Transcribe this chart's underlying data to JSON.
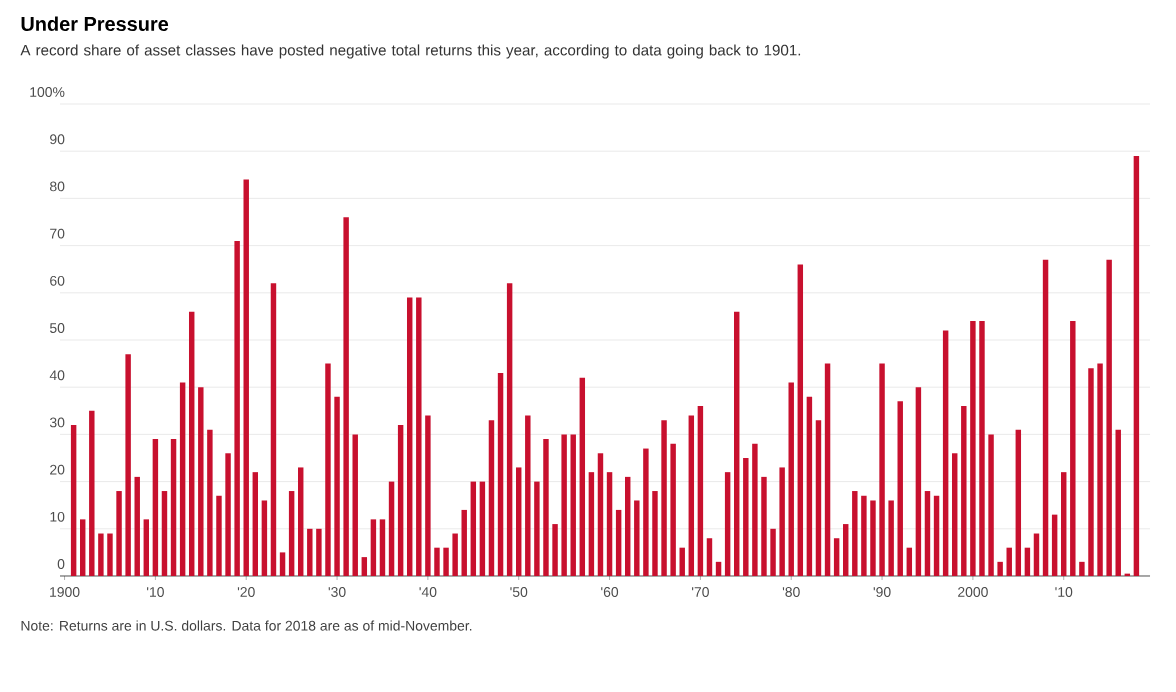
{
  "chart_data": {
    "type": "bar",
    "title": "Under Pressure",
    "subtitle": "A record share of asset classes have posted negative total returns this year, according to data going back to 1901.",
    "x": [
      1901,
      1902,
      1903,
      1904,
      1905,
      1906,
      1907,
      1908,
      1909,
      1910,
      1911,
      1912,
      1913,
      1914,
      1915,
      1916,
      1917,
      1918,
      1919,
      1920,
      1921,
      1922,
      1923,
      1924,
      1925,
      1926,
      1927,
      1928,
      1929,
      1930,
      1931,
      1932,
      1933,
      1934,
      1935,
      1936,
      1937,
      1938,
      1939,
      1940,
      1941,
      1942,
      1943,
      1944,
      1945,
      1946,
      1947,
      1948,
      1949,
      1950,
      1951,
      1952,
      1953,
      1954,
      1955,
      1956,
      1957,
      1958,
      1959,
      1960,
      1961,
      1962,
      1963,
      1964,
      1965,
      1966,
      1967,
      1968,
      1969,
      1970,
      1971,
      1972,
      1973,
      1974,
      1975,
      1976,
      1977,
      1978,
      1979,
      1980,
      1981,
      1982,
      1983,
      1984,
      1985,
      1986,
      1987,
      1988,
      1989,
      1990,
      1991,
      1992,
      1993,
      1994,
      1995,
      1996,
      1997,
      1998,
      1999,
      2000,
      2001,
      2002,
      2003,
      2004,
      2005,
      2006,
      2007,
      2008,
      2009,
      2010,
      2011,
      2012,
      2013,
      2014,
      2015,
      2016,
      2017,
      2018
    ],
    "values": [
      32,
      12,
      35,
      9,
      9,
      18,
      47,
      21,
      12,
      29,
      18,
      29,
      41,
      56,
      40,
      31,
      17,
      26,
      71,
      84,
      22,
      16,
      62,
      5,
      18,
      23,
      10,
      10,
      45,
      38,
      76,
      30,
      4,
      12,
      12,
      20,
      32,
      59,
      59,
      34,
      6,
      6,
      9,
      14,
      20,
      20,
      33,
      43,
      62,
      23,
      34,
      20,
      29,
      11,
      30,
      30,
      42,
      22,
      26,
      22,
      14,
      21,
      16,
      27,
      18,
      33,
      28,
      6,
      34,
      36,
      8,
      3,
      22,
      56,
      25,
      28,
      21,
      10,
      23,
      41,
      66,
      38,
      33,
      45,
      8,
      11,
      18,
      17,
      16,
      45,
      16,
      37,
      6,
      40,
      18,
      17,
      52,
      26,
      36,
      54,
      54,
      30,
      3,
      6,
      31,
      6,
      9,
      67,
      13,
      22,
      54,
      3,
      44,
      45,
      67,
      31,
      0.5,
      89
    ],
    "color": "#c8102e",
    "xlim": [
      1899.5,
      2019.5
    ],
    "xticks": [
      {
        "value": 1900,
        "label": "1900"
      },
      {
        "value": 1910,
        "label": "'10"
      },
      {
        "value": 1920,
        "label": "'20"
      },
      {
        "value": 1930,
        "label": "'30"
      },
      {
        "value": 1940,
        "label": "'40"
      },
      {
        "value": 1950,
        "label": "'50"
      },
      {
        "value": 1960,
        "label": "'60"
      },
      {
        "value": 1970,
        "label": "'70"
      },
      {
        "value": 1980,
        "label": "'80"
      },
      {
        "value": 1990,
        "label": "'90"
      },
      {
        "value": 2000,
        "label": "2000"
      },
      {
        "value": 2010,
        "label": "'10"
      }
    ],
    "ylim": [
      0,
      100
    ],
    "yticks": [
      0,
      10,
      20,
      30,
      40,
      50,
      60,
      70,
      80,
      90,
      {
        "value": 100,
        "label": "100%"
      }
    ],
    "grid": "y",
    "annotations": [
      "Note: Returns are in U.S. dollars. Data for 2018 are as of mid-November."
    ]
  }
}
